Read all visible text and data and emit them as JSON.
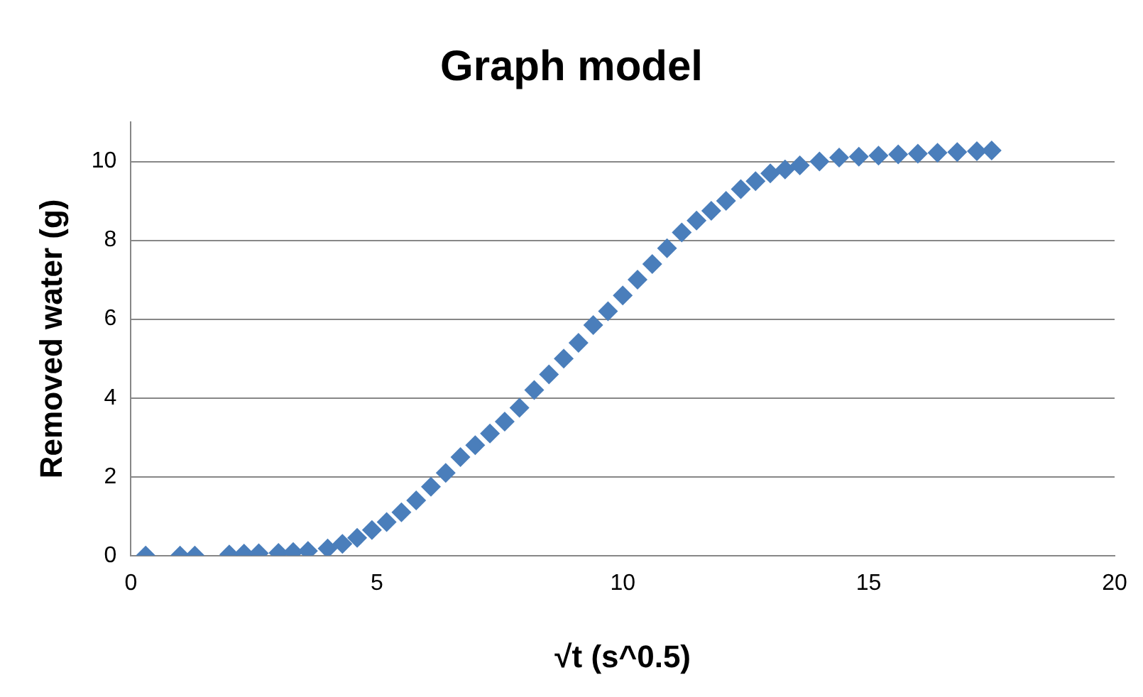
{
  "chart_data": {
    "type": "scatter",
    "title": "Graph model",
    "xlabel": "√t (s^0.5)",
    "ylabel": "Removed water (g)",
    "xlim": [
      0,
      20
    ],
    "xticks": [
      0,
      5,
      10,
      15,
      20
    ],
    "ylim": [
      0,
      11
    ],
    "yticks": [
      0,
      2,
      4,
      6,
      8,
      10
    ],
    "grid": "y",
    "legend": false,
    "marker": "diamond",
    "series": [
      {
        "color": "#4a7ebb",
        "x": [
          0.3,
          1.0,
          1.3,
          2.0,
          2.3,
          2.6,
          3.0,
          3.3,
          3.6,
          4.0,
          4.3,
          4.6,
          4.9,
          5.2,
          5.5,
          5.8,
          6.1,
          6.4,
          6.7,
          7.0,
          7.3,
          7.6,
          7.9,
          8.2,
          8.5,
          8.8,
          9.1,
          9.4,
          9.7,
          10.0,
          10.3,
          10.6,
          10.9,
          11.2,
          11.5,
          11.8,
          12.1,
          12.4,
          12.7,
          13.0,
          13.3,
          13.6,
          14.0,
          14.4,
          14.8,
          15.2,
          15.6,
          16.0,
          16.4,
          16.8,
          17.2,
          17.5
        ],
        "values": [
          0,
          0,
          0,
          0.03,
          0.05,
          0.06,
          0.07,
          0.09,
          0.12,
          0.18,
          0.3,
          0.45,
          0.65,
          0.85,
          1.1,
          1.4,
          1.75,
          2.1,
          2.5,
          2.8,
          3.1,
          3.4,
          3.75,
          4.2,
          4.6,
          5.0,
          5.4,
          5.85,
          6.2,
          6.6,
          7.0,
          7.4,
          7.8,
          8.2,
          8.5,
          8.75,
          9.0,
          9.3,
          9.5,
          9.7,
          9.8,
          9.9,
          10.0,
          10.1,
          10.12,
          10.15,
          10.18,
          10.2,
          10.22,
          10.24,
          10.26,
          10.28
        ]
      }
    ]
  }
}
